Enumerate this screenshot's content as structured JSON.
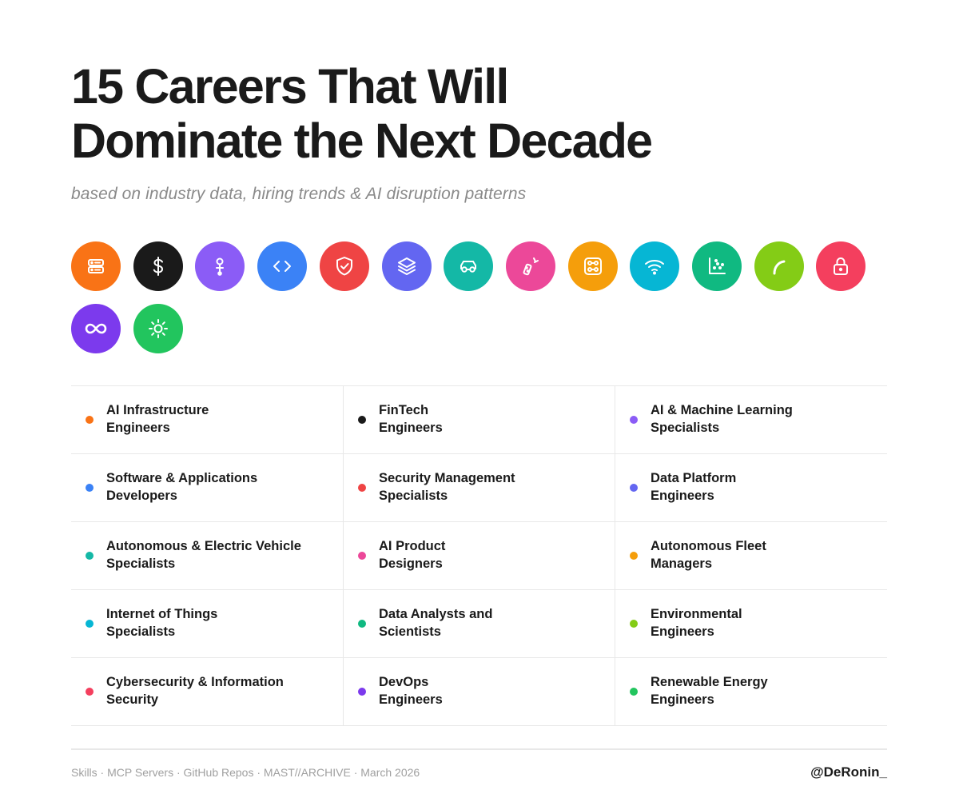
{
  "title": {
    "line1": "15 Careers That Will",
    "line2": "Dominate the Next Decade"
  },
  "subtitle": "based on industry data, hiring trends & AI disruption patterns",
  "icons": [
    {
      "name": "server-icon",
      "color": "#f97316"
    },
    {
      "name": "dollar-icon",
      "color": "#1a1a1a"
    },
    {
      "name": "neural-node-icon",
      "color": "#8b5cf6"
    },
    {
      "name": "code-icon",
      "color": "#3b82f6"
    },
    {
      "name": "shield-check-icon",
      "color": "#ef4444"
    },
    {
      "name": "layers-icon",
      "color": "#6366f1"
    },
    {
      "name": "car-icon",
      "color": "#14b8a6"
    },
    {
      "name": "magic-wand-icon",
      "color": "#ec4899"
    },
    {
      "name": "network-nodes-icon",
      "color": "#f59e0b"
    },
    {
      "name": "wifi-icon",
      "color": "#06b6d4"
    },
    {
      "name": "scatter-chart-icon",
      "color": "#10b981"
    },
    {
      "name": "leaf-curve-icon",
      "color": "#84cc16"
    },
    {
      "name": "lock-icon",
      "color": "#f43f5e"
    },
    {
      "name": "infinity-icon",
      "color": "#7c3aed"
    },
    {
      "name": "sun-icon",
      "color": "#22c55e"
    }
  ],
  "careers": [
    [
      {
        "line1": "AI Infrastructure",
        "line2": "Engineers",
        "color": "#f97316"
      },
      {
        "line1": "FinTech",
        "line2": "Engineers",
        "color": "#1a1a1a"
      },
      {
        "line1": "AI & Machine Learning",
        "line2": "Specialists",
        "color": "#8b5cf6"
      }
    ],
    [
      {
        "line1": "Software & Applications",
        "line2": "Developers",
        "color": "#3b82f6"
      },
      {
        "line1": "Security Management",
        "line2": "Specialists",
        "color": "#ef4444"
      },
      {
        "line1": "Data Platform",
        "line2": "Engineers",
        "color": "#6366f1"
      }
    ],
    [
      {
        "line1": "Autonomous & Electric Vehicle",
        "line2": "Specialists",
        "color": "#14b8a6"
      },
      {
        "line1": "AI Product",
        "line2": "Designers",
        "color": "#ec4899"
      },
      {
        "line1": "Autonomous Fleet",
        "line2": "Managers",
        "color": "#f59e0b"
      }
    ],
    [
      {
        "line1": "Internet of Things",
        "line2": "Specialists",
        "color": "#06b6d4"
      },
      {
        "line1": "Data Analysts and",
        "line2": "Scientists",
        "color": "#10b981"
      },
      {
        "line1": "Environmental",
        "line2": "Engineers",
        "color": "#84cc16"
      }
    ],
    [
      {
        "line1": "Cybersecurity & Information",
        "line2": "Security",
        "color": "#f43f5e"
      },
      {
        "line1": "DevOps",
        "line2": "Engineers",
        "color": "#7c3aed"
      },
      {
        "line1": "Renewable Energy",
        "line2": "Engineers",
        "color": "#22c55e"
      }
    ]
  ],
  "footer": {
    "left": "Skills · MCP Servers · GitHub Repos · MAST//ARCHIVE · March 2026",
    "right": "@DeRonin_"
  }
}
